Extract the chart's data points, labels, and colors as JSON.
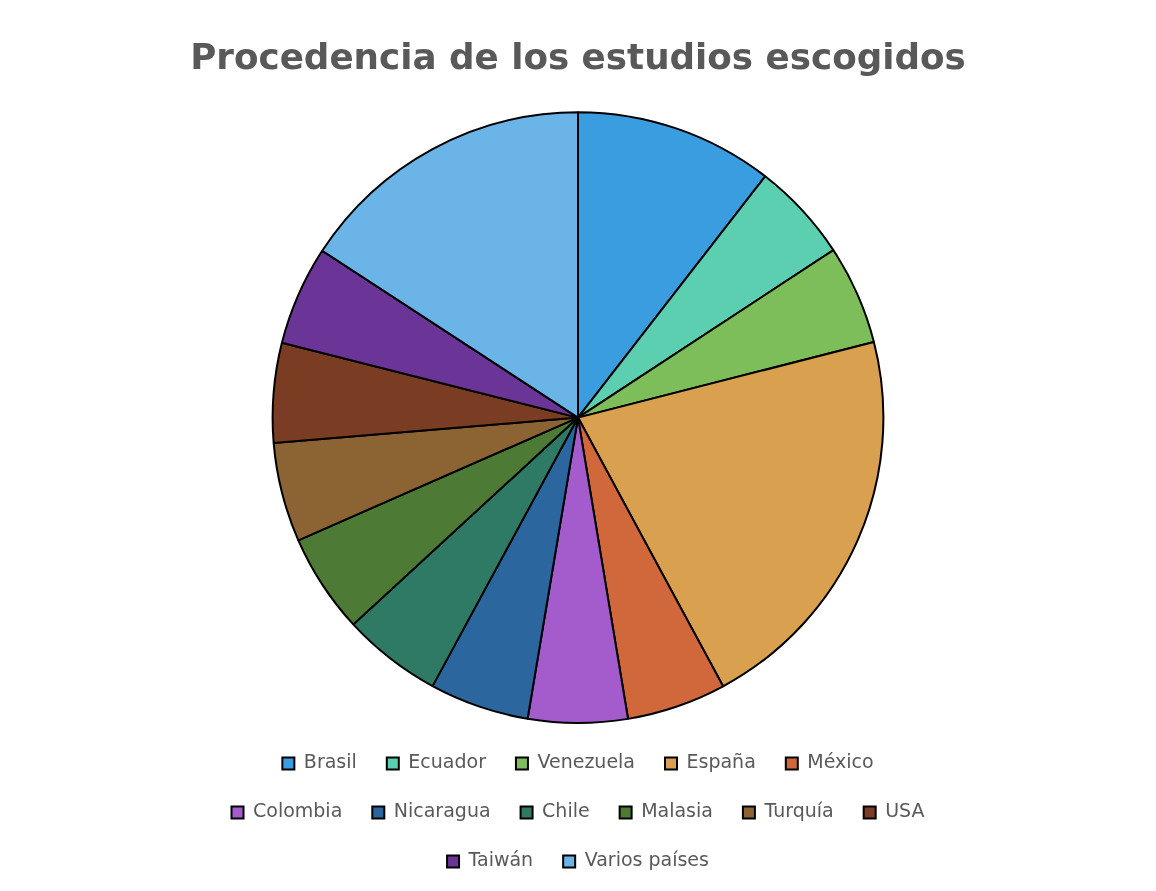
{
  "chart_data": {
    "type": "pie",
    "title": "Procedencia de los estudios escogidos",
    "categories": [
      "Brasil",
      "Ecuador",
      "Venezuela",
      "España",
      "México",
      "Colombia",
      "Nicaragua",
      "Chile",
      "Malasia",
      "Turquía",
      "USA",
      "Taiwán",
      "Varios países"
    ],
    "values": [
      10.5,
      5.26,
      5.26,
      21.1,
      5.26,
      5.26,
      5.26,
      5.26,
      5.26,
      5.26,
      5.26,
      5.26,
      15.8
    ],
    "colors": [
      "#3a9de0",
      "#5ccfb0",
      "#7dbd5a",
      "#d9a04f",
      "#d0683c",
      "#a45ccc",
      "#2b669e",
      "#2e7a64",
      "#4d7a34",
      "#8c6433",
      "#7a3d24",
      "#6a3596",
      "#6ab4e8"
    ],
    "legend": "bottom"
  }
}
